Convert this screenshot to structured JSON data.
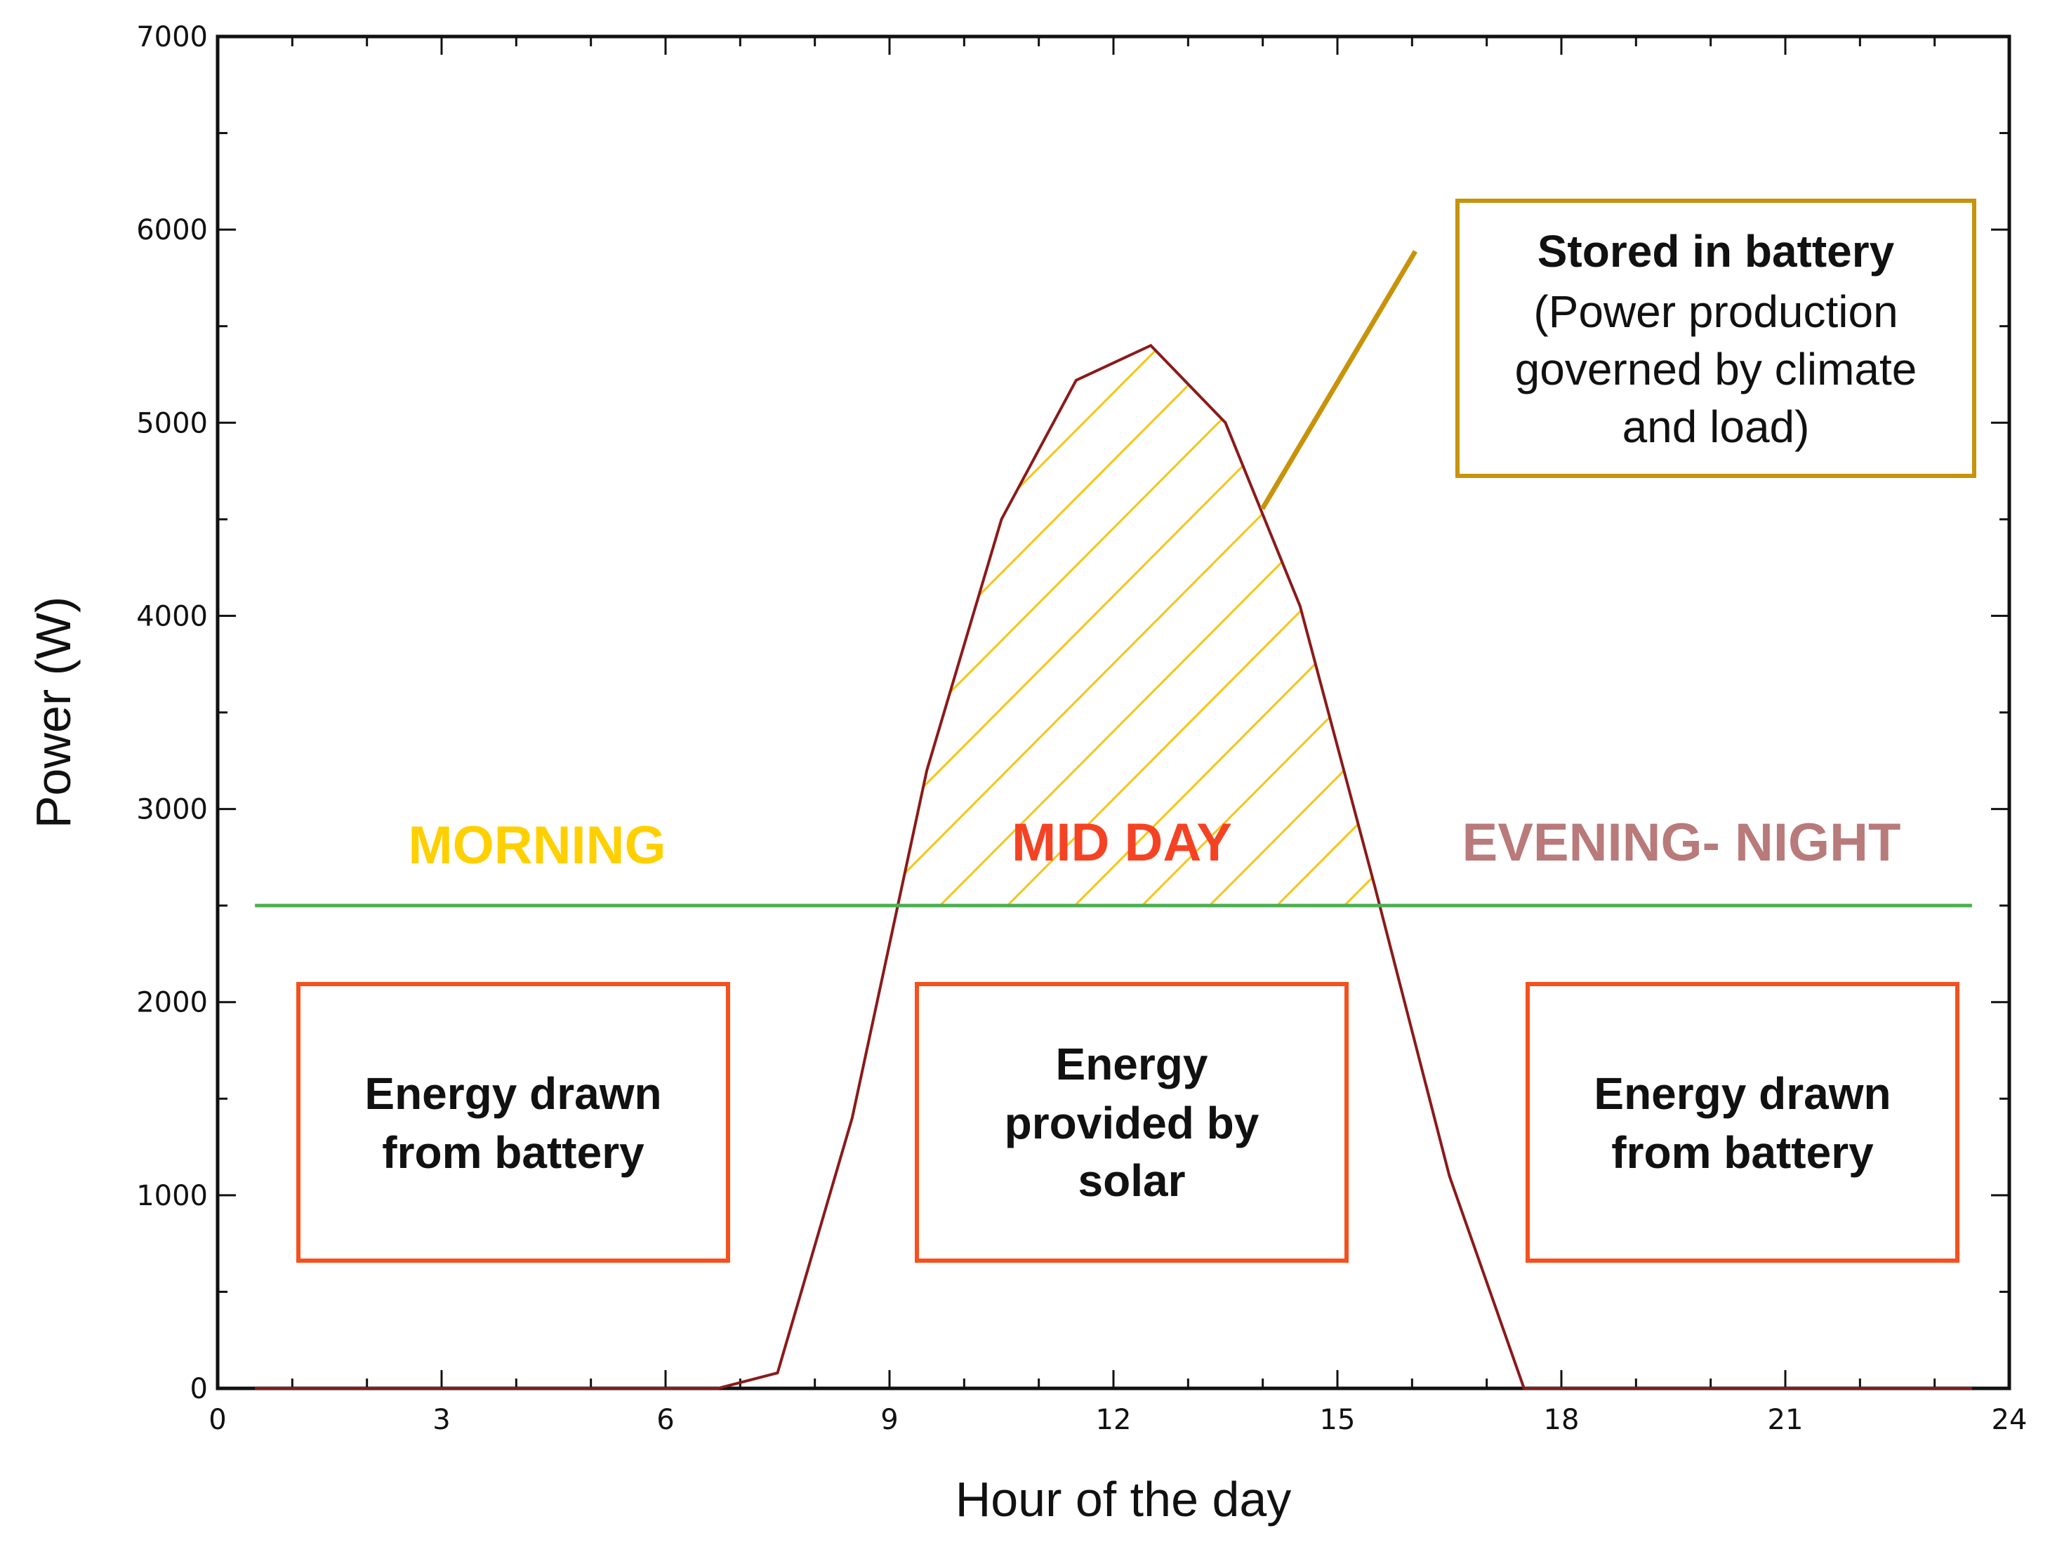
{
  "chart_data": {
    "type": "line",
    "xlabel": "Hour of the day",
    "ylabel": "Power (W)",
    "xlim": [
      0,
      24
    ],
    "ylim": [
      0,
      7000
    ],
    "x_ticks": [
      0,
      3,
      6,
      9,
      12,
      15,
      18,
      21,
      24
    ],
    "y_ticks": [
      0,
      1000,
      2000,
      3000,
      4000,
      5000,
      6000,
      7000
    ],
    "grid": false,
    "series": [
      {
        "color": "#8B1A1A",
        "x": [
          0.5,
          6.7,
          7.5,
          8.5,
          9.5,
          10.5,
          11.5,
          12.5,
          13.5,
          14.5,
          15.5,
          16.5,
          17.5,
          23.5
        ],
        "y": [
          0,
          0,
          80,
          1400,
          3200,
          4500,
          5220,
          5400,
          5000,
          4050,
          2600,
          1100,
          0,
          0
        ]
      },
      {
        "color": "#4CAF50",
        "x": [
          0.5,
          23.5
        ],
        "y": [
          2500,
          2500
        ]
      }
    ],
    "hatched_region": {
      "color": "#F5C518",
      "above_y": 2500,
      "x_from": 9.0,
      "x_to": 15.6
    },
    "period_labels": [
      {
        "text": "MORNING",
        "color": "#FFD000"
      },
      {
        "text": "MID DAY",
        "color": "#F44324"
      },
      {
        "text": "EVENING- NIGHT",
        "color": "#B87A7A"
      }
    ],
    "boxes": [
      {
        "lines": [
          "Energy drawn",
          "from battery"
        ],
        "border": "#F4511E"
      },
      {
        "lines": [
          "Energy",
          "provided by",
          "solar"
        ],
        "border": "#F4511E"
      },
      {
        "lines": [
          "Energy drawn",
          "from battery"
        ],
        "border": "#F4511E"
      }
    ],
    "callout": {
      "title": "Stored in battery",
      "lines": [
        "(Power production",
        "governed by climate",
        "and load)"
      ],
      "border": "#C8930A"
    }
  }
}
